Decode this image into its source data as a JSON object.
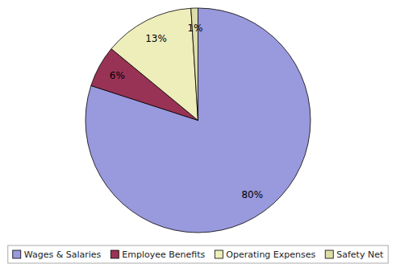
{
  "chart_data": {
    "type": "pie",
    "categories": [
      "Wages & Salaries",
      "Employee Benefits",
      "Operating Expenses",
      "Safety Net"
    ],
    "values": [
      80,
      6,
      13,
      1
    ],
    "value_labels": [
      "80%",
      "6%",
      "13%",
      "1%"
    ],
    "colors": [
      "#9999dd",
      "#993355",
      "#eeeebb",
      "#ddddaa"
    ],
    "data_labels": true,
    "legend": "bottom"
  }
}
